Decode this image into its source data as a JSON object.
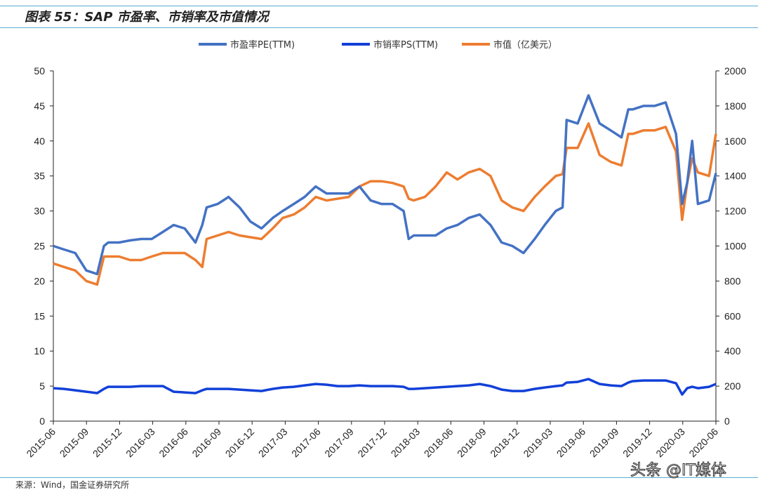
{
  "header": {
    "title": "图表 55：SAP 市盈率、市销率及市值情况"
  },
  "footer": {
    "source": "来源：Wind，国金证券研究所",
    "watermark": "头条 @IT媒体"
  },
  "chart_data": {
    "type": "line",
    "title": "",
    "legend_position": "top",
    "grid": false,
    "x_ticks": [
      "2015-06",
      "2015-09",
      "2015-12",
      "2016-03",
      "2016-06",
      "2016-09",
      "2016-12",
      "2017-03",
      "2017-06",
      "2017-09",
      "2017-12",
      "2018-03",
      "2018-06",
      "2018-09",
      "2018-12",
      "2019-03",
      "2019-06",
      "2019-09",
      "2019-12",
      "2020-03",
      "2020-06"
    ],
    "xlim": [
      "2015-06-01",
      "2020-06-20"
    ],
    "ylim_left": [
      0,
      50
    ],
    "yticks_left": [
      0,
      5,
      10,
      15,
      20,
      25,
      30,
      35,
      40,
      45,
      50
    ],
    "ylim_right": [
      0,
      2000
    ],
    "yticks_right": [
      0,
      200,
      400,
      600,
      800,
      1000,
      1200,
      1400,
      1600,
      1800,
      2000
    ],
    "x": [
      "2015-06-01",
      "2015-07-01",
      "2015-08-01",
      "2015-09-01",
      "2015-10-01",
      "2015-10-20",
      "2015-11-01",
      "2015-12-01",
      "2016-01-01",
      "2016-02-01",
      "2016-03-01",
      "2016-04-01",
      "2016-05-01",
      "2016-06-01",
      "2016-07-01",
      "2016-07-20",
      "2016-08-01",
      "2016-09-01",
      "2016-10-01",
      "2016-11-01",
      "2016-12-01",
      "2017-01-01",
      "2017-02-01",
      "2017-03-01",
      "2017-04-01",
      "2017-05-01",
      "2017-06-01",
      "2017-07-01",
      "2017-08-01",
      "2017-09-01",
      "2017-10-01",
      "2017-11-01",
      "2017-12-01",
      "2018-01-01",
      "2018-02-01",
      "2018-02-15",
      "2018-03-01",
      "2018-04-01",
      "2018-05-01",
      "2018-06-01",
      "2018-07-01",
      "2018-08-01",
      "2018-09-01",
      "2018-10-01",
      "2018-11-01",
      "2018-12-01",
      "2019-01-01",
      "2019-02-01",
      "2019-03-01",
      "2019-04-01",
      "2019-04-20",
      "2019-05-01",
      "2019-06-01",
      "2019-07-01",
      "2019-08-01",
      "2019-09-01",
      "2019-10-01",
      "2019-10-20",
      "2019-11-01",
      "2019-12-01",
      "2020-01-01",
      "2020-02-01",
      "2020-03-01",
      "2020-03-18",
      "2020-04-01",
      "2020-04-15",
      "2020-05-01",
      "2020-06-01",
      "2020-06-20"
    ],
    "series": [
      {
        "name": "市盈率PE(TTM)",
        "axis": "left",
        "color": "#4472c4",
        "values": [
          25,
          24.5,
          24,
          21.5,
          21,
          25,
          25.5,
          25.5,
          25.8,
          26,
          26,
          27,
          28,
          27.5,
          25.5,
          28,
          30.5,
          31,
          32,
          30.5,
          28.5,
          27.5,
          29,
          30,
          31,
          32,
          33.5,
          32.5,
          32.5,
          32.5,
          33.5,
          31.5,
          31,
          31,
          30,
          26,
          26.5,
          26.5,
          26.5,
          27.5,
          28,
          29,
          29.5,
          28,
          25.5,
          25,
          24,
          26,
          28,
          30,
          30.5,
          43,
          42.5,
          46.5,
          42.5,
          41.5,
          40.5,
          44.5,
          44.5,
          45,
          45,
          45.5,
          41,
          31,
          34,
          40,
          31,
          31.5,
          35.4
        ]
      },
      {
        "name": "市销率PS(TTM)",
        "axis": "left",
        "color": "#1240d8",
        "values": [
          4.7,
          4.6,
          4.4,
          4.2,
          4.0,
          4.6,
          4.9,
          4.9,
          4.9,
          5.0,
          5.0,
          5.0,
          4.2,
          4.1,
          4.0,
          4.4,
          4.6,
          4.6,
          4.6,
          4.5,
          4.4,
          4.3,
          4.6,
          4.8,
          4.9,
          5.1,
          5.3,
          5.2,
          5.0,
          5.0,
          5.1,
          5.0,
          5.0,
          5.0,
          4.9,
          4.6,
          4.6,
          4.7,
          4.8,
          4.9,
          5.0,
          5.1,
          5.3,
          5.0,
          4.5,
          4.3,
          4.3,
          4.6,
          4.8,
          5.0,
          5.1,
          5.5,
          5.6,
          6.0,
          5.3,
          5.1,
          5.0,
          5.5,
          5.7,
          5.8,
          5.8,
          5.8,
          5.4,
          3.8,
          4.7,
          4.9,
          4.7,
          4.9,
          5.3
        ]
      },
      {
        "name": "市值（亿美元）",
        "axis": "right",
        "color": "#ed7d31",
        "values": [
          900,
          880,
          860,
          800,
          780,
          940,
          940,
          940,
          920,
          920,
          940,
          960,
          960,
          960,
          920,
          880,
          1040,
          1060,
          1080,
          1060,
          1050,
          1040,
          1100,
          1160,
          1180,
          1220,
          1280,
          1260,
          1270,
          1280,
          1340,
          1370,
          1370,
          1360,
          1340,
          1270,
          1260,
          1280,
          1340,
          1420,
          1380,
          1420,
          1440,
          1400,
          1260,
          1220,
          1200,
          1280,
          1340,
          1400,
          1410,
          1560,
          1560,
          1700,
          1520,
          1480,
          1460,
          1640,
          1640,
          1660,
          1660,
          1680,
          1540,
          1150,
          1360,
          1500,
          1420,
          1400,
          1640
        ]
      }
    ]
  }
}
